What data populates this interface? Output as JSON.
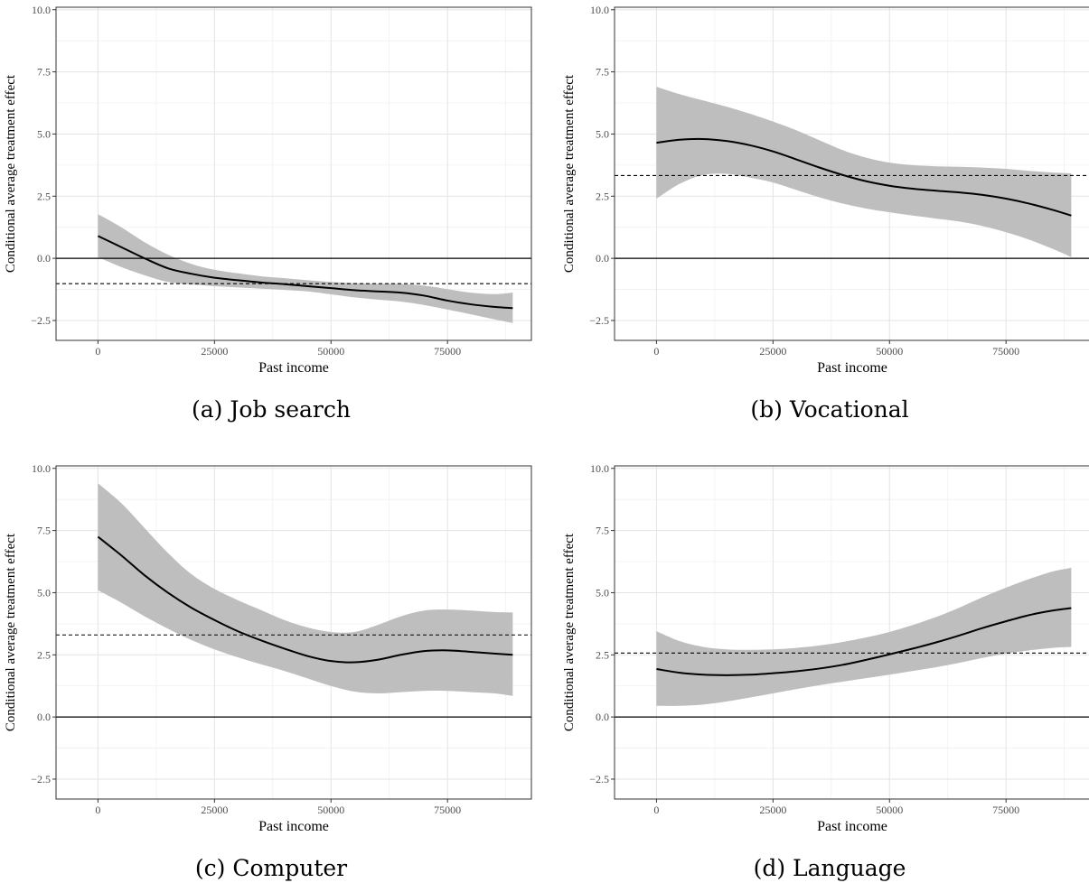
{
  "chart_data": [
    {
      "type": "line",
      "caption": "(a) Job search",
      "xlabel": "Past income",
      "ylabel": "Conditional average treatment effect",
      "xlim": [
        -9000,
        93000
      ],
      "ylim": [
        -3.3,
        10.1
      ],
      "x_ticks": [
        0,
        25000,
        50000,
        75000
      ],
      "y_ticks": [
        -2.5,
        0.0,
        2.5,
        5.0,
        7.5,
        10.0
      ],
      "x_tick_labels": [
        "0",
        "25000",
        "50000",
        "75000"
      ],
      "y_tick_labels": [
        "−2.5",
        "0.0",
        "2.5",
        "5.0",
        "7.5",
        "10.0"
      ],
      "grid": true,
      "reference_line": 0.0,
      "mean_line": -1.02,
      "series": [
        {
          "x": [
            0,
            5000,
            10000,
            15000,
            20000,
            25000,
            30000,
            35000,
            40000,
            45000,
            50000,
            55000,
            60000,
            65000,
            70000,
            75000,
            80000,
            85000,
            89000
          ],
          "y": [
            0.9,
            0.45,
            0.0,
            -0.4,
            -0.62,
            -0.78,
            -0.88,
            -0.97,
            -1.04,
            -1.12,
            -1.2,
            -1.28,
            -1.33,
            -1.38,
            -1.5,
            -1.7,
            -1.85,
            -1.95,
            -2.0
          ],
          "lower": [
            0.05,
            -0.35,
            -0.68,
            -0.95,
            -1.05,
            -1.12,
            -1.17,
            -1.22,
            -1.27,
            -1.33,
            -1.45,
            -1.57,
            -1.66,
            -1.74,
            -1.88,
            -2.06,
            -2.25,
            -2.45,
            -2.6
          ],
          "upper": [
            1.78,
            1.25,
            0.65,
            0.15,
            -0.22,
            -0.46,
            -0.6,
            -0.72,
            -0.8,
            -0.88,
            -0.95,
            -1.0,
            -1.02,
            -1.03,
            -1.1,
            -1.24,
            -1.38,
            -1.44,
            -1.38
          ]
        }
      ]
    },
    {
      "type": "line",
      "caption": "(b) Vocational",
      "xlabel": "Past income",
      "ylabel": "Conditional average treatment effect",
      "xlim": [
        -9000,
        93000
      ],
      "ylim": [
        -3.3,
        10.1
      ],
      "x_ticks": [
        0,
        25000,
        50000,
        75000
      ],
      "y_ticks": [
        -2.5,
        0.0,
        2.5,
        5.0,
        7.5,
        10.0
      ],
      "x_tick_labels": [
        "0",
        "25000",
        "50000",
        "75000"
      ],
      "y_tick_labels": [
        "−2.5",
        "0.0",
        "2.5",
        "5.0",
        "7.5",
        "10.0"
      ],
      "grid": true,
      "reference_line": 0.0,
      "mean_line": 3.33,
      "series": [
        {
          "x": [
            0,
            5000,
            10000,
            15000,
            20000,
            25000,
            30000,
            35000,
            40000,
            45000,
            50000,
            55000,
            60000,
            65000,
            70000,
            75000,
            80000,
            85000,
            89000
          ],
          "y": [
            4.65,
            4.77,
            4.8,
            4.72,
            4.55,
            4.3,
            3.98,
            3.65,
            3.35,
            3.1,
            2.92,
            2.8,
            2.72,
            2.65,
            2.55,
            2.4,
            2.2,
            1.95,
            1.72
          ],
          "lower": [
            2.4,
            3.0,
            3.35,
            3.4,
            3.25,
            3.05,
            2.75,
            2.45,
            2.2,
            2.0,
            1.85,
            1.72,
            1.6,
            1.48,
            1.3,
            1.05,
            0.75,
            0.38,
            0.05
          ],
          "upper": [
            6.9,
            6.6,
            6.35,
            6.1,
            5.82,
            5.5,
            5.15,
            4.75,
            4.35,
            4.05,
            3.85,
            3.75,
            3.7,
            3.68,
            3.65,
            3.6,
            3.52,
            3.45,
            3.42
          ]
        }
      ]
    },
    {
      "type": "line",
      "caption": "(c) Computer",
      "xlabel": "Past income",
      "ylabel": "Conditional average treatment effect",
      "xlim": [
        -9000,
        93000
      ],
      "ylim": [
        -3.3,
        10.1
      ],
      "x_ticks": [
        0,
        25000,
        50000,
        75000
      ],
      "y_ticks": [
        -2.5,
        0.0,
        2.5,
        5.0,
        7.5,
        10.0
      ],
      "x_tick_labels": [
        "0",
        "25000",
        "50000",
        "75000"
      ],
      "y_tick_labels": [
        "−2.5",
        "0.0",
        "2.5",
        "5.0",
        "7.5",
        "10.0"
      ],
      "grid": true,
      "reference_line": 0.0,
      "mean_line": 3.3,
      "series": [
        {
          "x": [
            0,
            5000,
            10000,
            15000,
            20000,
            25000,
            30000,
            35000,
            40000,
            45000,
            50000,
            55000,
            60000,
            65000,
            70000,
            75000,
            80000,
            85000,
            89000
          ],
          "y": [
            7.25,
            6.5,
            5.7,
            5.0,
            4.4,
            3.9,
            3.45,
            3.08,
            2.75,
            2.45,
            2.25,
            2.2,
            2.3,
            2.5,
            2.65,
            2.68,
            2.62,
            2.55,
            2.5
          ],
          "lower": [
            5.1,
            4.6,
            4.05,
            3.55,
            3.1,
            2.72,
            2.4,
            2.12,
            1.85,
            1.55,
            1.25,
            1.02,
            0.95,
            1.0,
            1.05,
            1.05,
            1.0,
            0.95,
            0.85
          ],
          "upper": [
            9.4,
            8.6,
            7.6,
            6.6,
            5.75,
            5.15,
            4.7,
            4.3,
            3.9,
            3.6,
            3.42,
            3.42,
            3.7,
            4.05,
            4.28,
            4.32,
            4.28,
            4.22,
            4.2
          ]
        }
      ]
    },
    {
      "type": "line",
      "caption": "(d) Language",
      "xlabel": "Past income",
      "ylabel": "Conditional average treatment effect",
      "xlim": [
        -9000,
        93000
      ],
      "ylim": [
        -3.3,
        10.1
      ],
      "x_ticks": [
        0,
        25000,
        50000,
        75000
      ],
      "y_ticks": [
        -2.5,
        0.0,
        2.5,
        5.0,
        7.5,
        10.0
      ],
      "x_tick_labels": [
        "0",
        "25000",
        "50000",
        "75000"
      ],
      "y_tick_labels": [
        "−2.5",
        "0.0",
        "2.5",
        "5.0",
        "7.5",
        "10.0"
      ],
      "grid": true,
      "reference_line": 0.0,
      "mean_line": 2.57,
      "series": [
        {
          "x": [
            0,
            5000,
            10000,
            15000,
            20000,
            25000,
            30000,
            35000,
            40000,
            45000,
            50000,
            55000,
            60000,
            65000,
            70000,
            75000,
            80000,
            85000,
            89000
          ],
          "y": [
            1.93,
            1.78,
            1.7,
            1.68,
            1.7,
            1.76,
            1.84,
            1.95,
            2.1,
            2.3,
            2.52,
            2.75,
            3.0,
            3.28,
            3.58,
            3.85,
            4.1,
            4.28,
            4.38
          ],
          "lower": [
            0.45,
            0.45,
            0.5,
            0.62,
            0.78,
            0.95,
            1.12,
            1.28,
            1.42,
            1.56,
            1.7,
            1.85,
            2.0,
            2.18,
            2.38,
            2.55,
            2.68,
            2.78,
            2.82
          ],
          "upper": [
            3.45,
            3.05,
            2.82,
            2.72,
            2.7,
            2.72,
            2.78,
            2.88,
            3.02,
            3.2,
            3.42,
            3.7,
            4.02,
            4.4,
            4.82,
            5.2,
            5.55,
            5.85,
            6.0
          ]
        }
      ]
    }
  ]
}
